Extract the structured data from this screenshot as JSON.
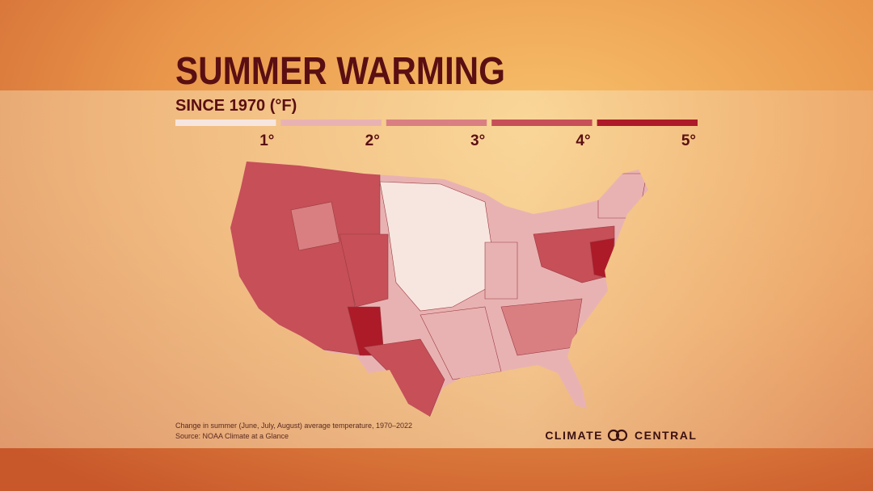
{
  "header": {
    "title": "SUMMER WARMING",
    "subtitle": "SINCE 1970 (°F)"
  },
  "legend": {
    "items": [
      {
        "label": "1°",
        "color": "#f7e6df"
      },
      {
        "label": "2°",
        "color": "#e9b2b2"
      },
      {
        "label": "3°",
        "color": "#d97f82"
      },
      {
        "label": "4°",
        "color": "#c64f58"
      },
      {
        "label": "5°",
        "color": "#ad1a28"
      }
    ]
  },
  "footer": {
    "note": "Change in summer (June, July, August) average temperature, 1970–2022",
    "source": "Source: NOAA Climate at a Glance"
  },
  "brand": {
    "left": "CLIMATE",
    "right": "CENTRAL"
  }
}
